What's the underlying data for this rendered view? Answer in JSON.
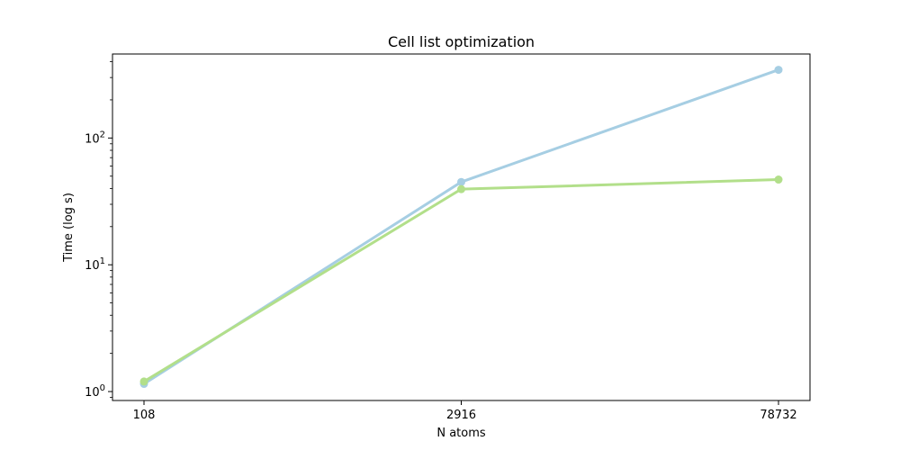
{
  "chart_data": {
    "type": "line",
    "title": "Cell list optimization",
    "xlabel": "N atoms",
    "ylabel": "Time (log s)",
    "x_scale": "categorical",
    "y_scale": "log",
    "categories": [
      "108",
      "2916",
      "78732"
    ],
    "ylim": [
      0.85,
      460
    ],
    "y_ticks": [
      {
        "value": 1,
        "base": "10",
        "exp": "0"
      },
      {
        "value": 10,
        "base": "10",
        "exp": "1"
      },
      {
        "value": 100,
        "base": "10",
        "exp": "2"
      }
    ],
    "grid": false,
    "legend": "none",
    "series": [
      {
        "values": [
          1.15,
          45,
          345
        ],
        "color": "#a6cee3"
      },
      {
        "values": [
          1.2,
          39.5,
          47
        ],
        "color": "#b2df8a"
      }
    ]
  }
}
